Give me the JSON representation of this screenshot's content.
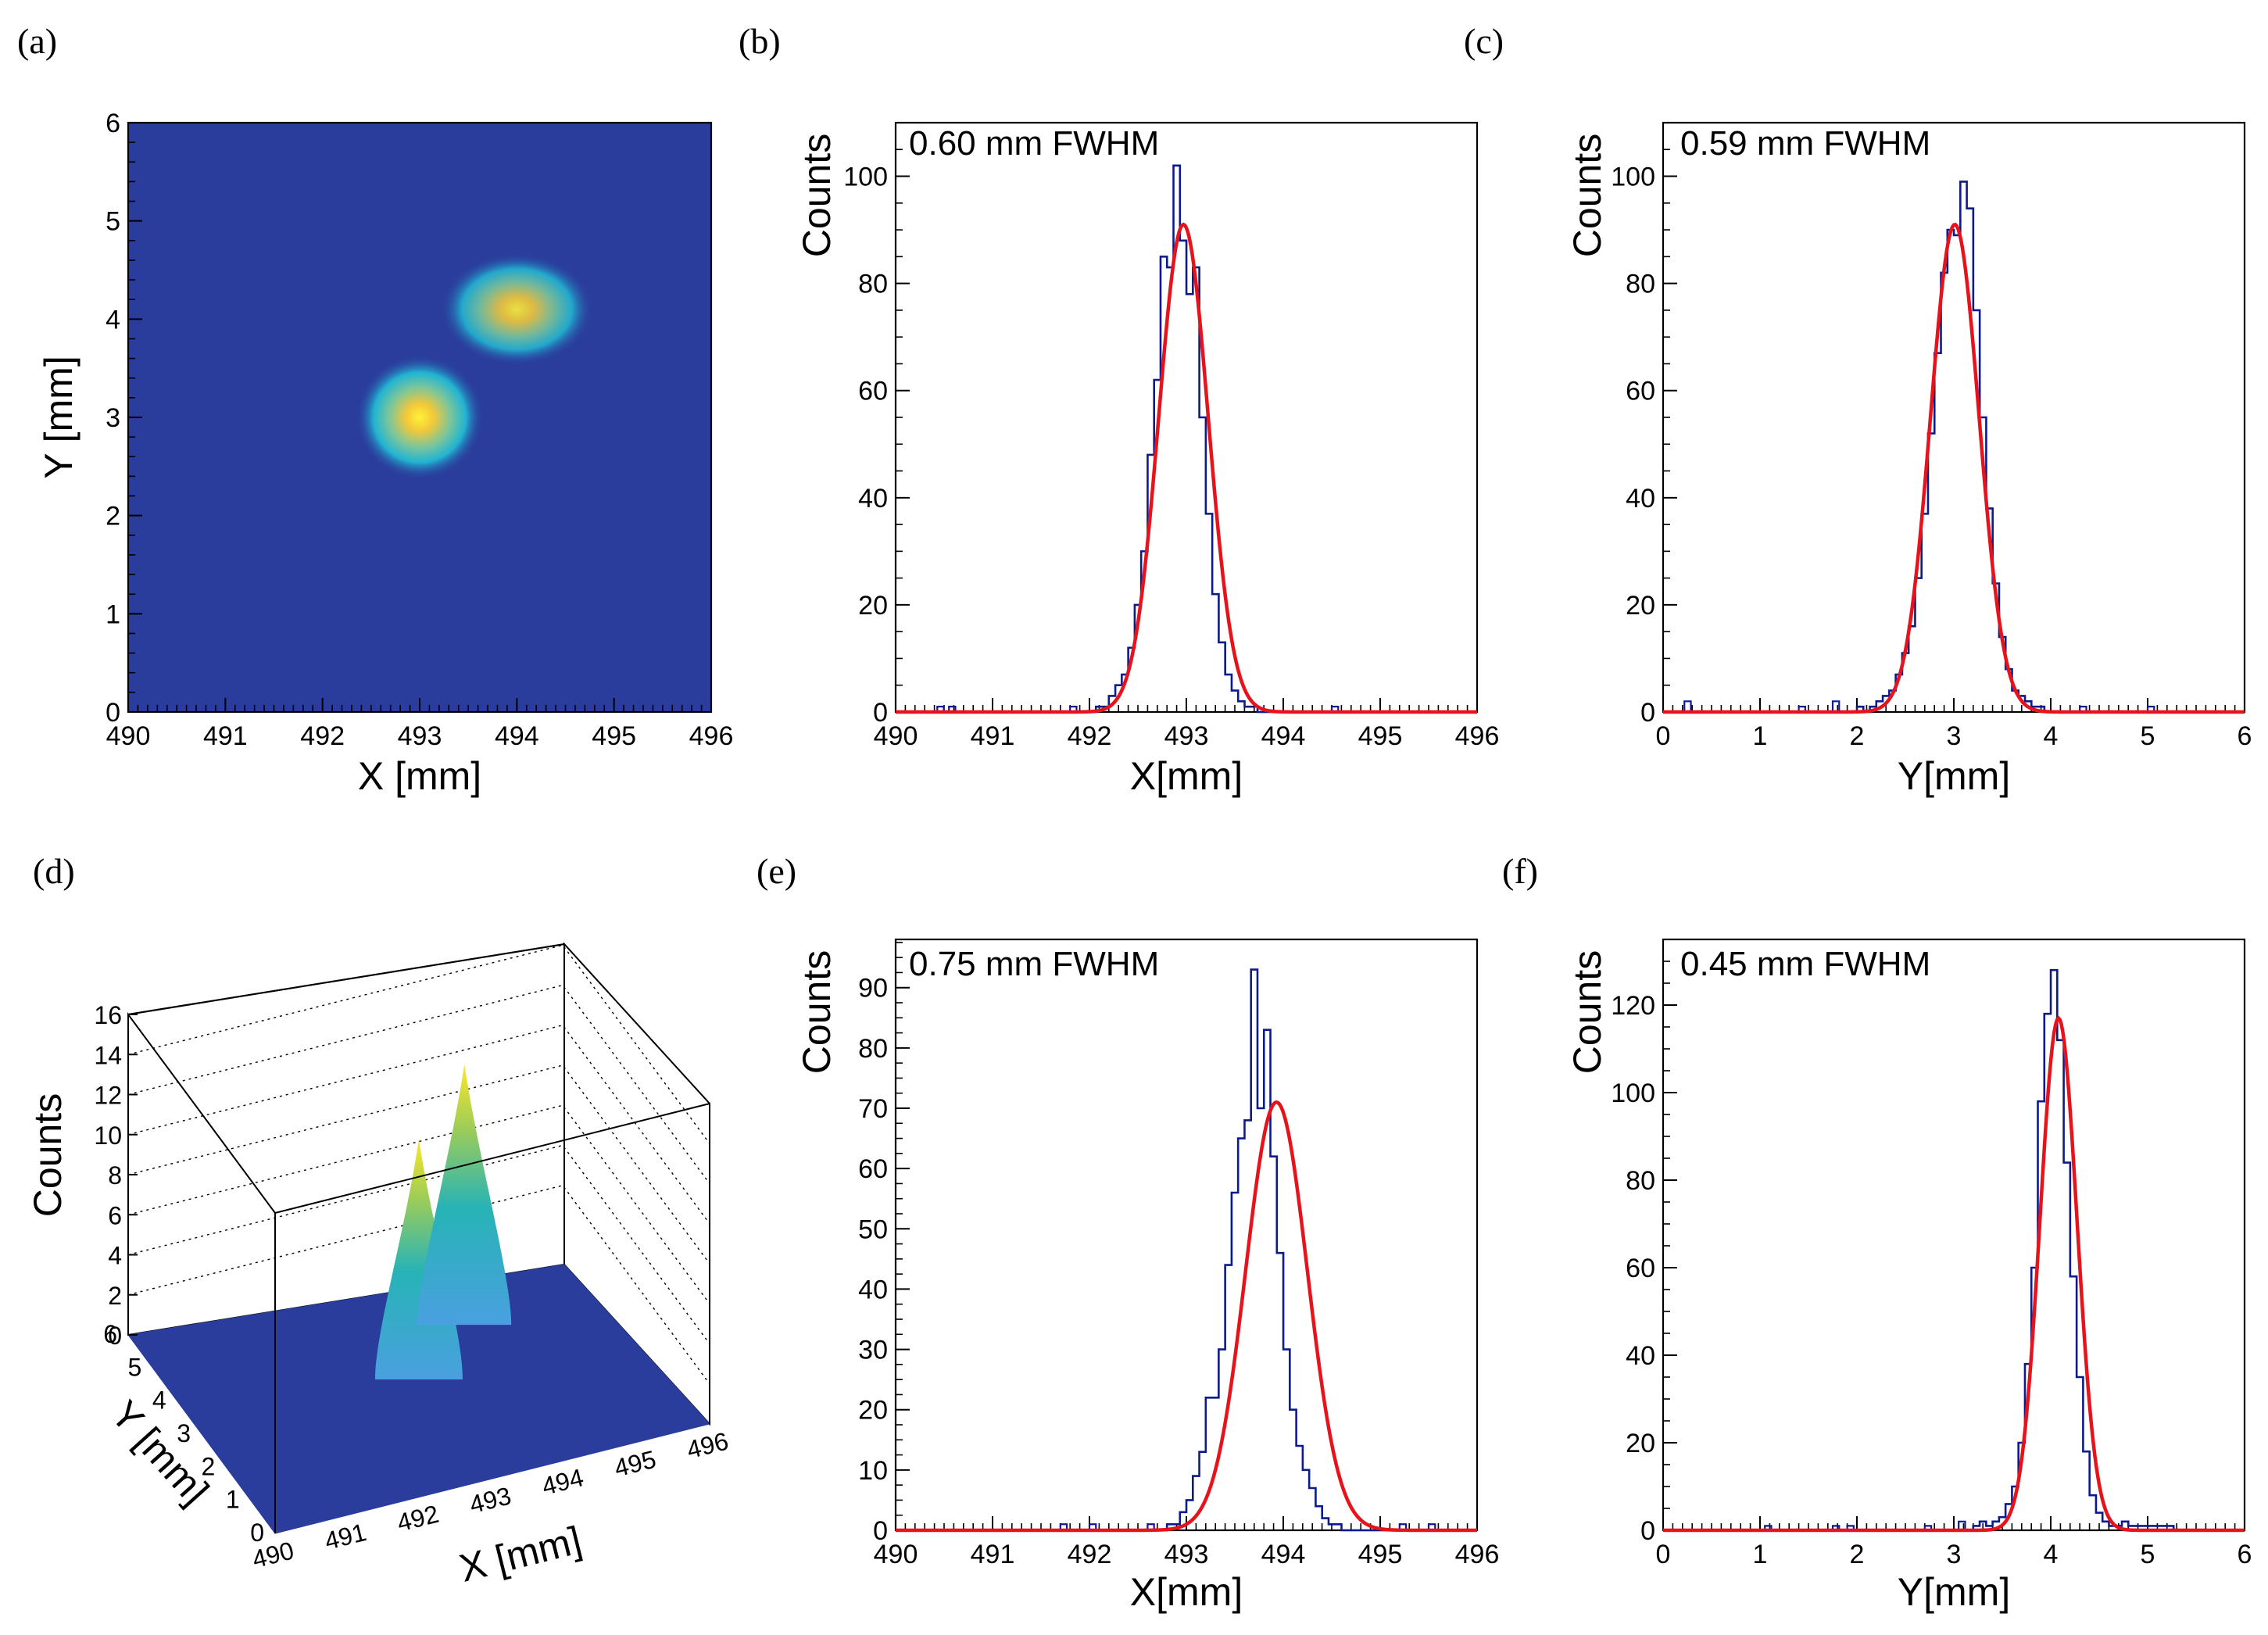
{
  "figure": {
    "panels": [
      {
        "letter": "(a)",
        "type": "heatmap",
        "xlabel": "X [mm]",
        "ylabel": "Y [mm]"
      },
      {
        "letter": "(b)",
        "type": "histogram",
        "annotation": "0.60 mm FWHM",
        "xlabel": "X[mm]",
        "ylabel": "Counts"
      },
      {
        "letter": "(c)",
        "type": "histogram",
        "annotation": "0.59 mm FWHM",
        "xlabel": "Y[mm]",
        "ylabel": "Counts"
      },
      {
        "letter": "(d)",
        "type": "surface3d",
        "xlabel": "X [mm]",
        "ylabel": "Y [mm]",
        "zlabel": "Counts"
      },
      {
        "letter": "(e)",
        "type": "histogram",
        "annotation": "0.75 mm FWHM",
        "xlabel": "X[mm]",
        "ylabel": "Counts"
      },
      {
        "letter": "(f)",
        "type": "histogram",
        "annotation": "0.45 mm FWHM",
        "xlabel": "Y[mm]",
        "ylabel": "Counts"
      }
    ]
  },
  "colors": {
    "background_map": "#2a3d9c",
    "histogram_line": "#0b1a8c",
    "fit_line": "#e8121b",
    "peak_core": "#fde725",
    "peak_mid": "#21b4b4"
  },
  "chart_data": [
    {
      "id": "a",
      "type": "heatmap",
      "title": "",
      "xlabel": "X [mm]",
      "ylabel": "Y [mm]",
      "xlim": [
        490,
        496
      ],
      "ylim": [
        0,
        6
      ],
      "xticks": [
        490,
        491,
        492,
        493,
        494,
        495,
        496
      ],
      "yticks": [
        0,
        1,
        2,
        3,
        4,
        5,
        6
      ],
      "spots": [
        {
          "x": 493.0,
          "y": 3.0,
          "peak": 1.0
        },
        {
          "x": 494.0,
          "y": 4.1,
          "peak": 0.9
        }
      ]
    },
    {
      "id": "b",
      "type": "histogram",
      "title": "",
      "annotation": "0.60 mm FWHM",
      "xlabel": "X[mm]",
      "ylabel": "Counts",
      "xlim": [
        490,
        496
      ],
      "ylim": [
        0,
        110
      ],
      "xticks": [
        490,
        491,
        492,
        493,
        494,
        495,
        496
      ],
      "yticks": [
        0,
        20,
        40,
        60,
        80,
        100
      ],
      "fit": {
        "mean": 492.97,
        "fwhm": 0.6,
        "amplitude": 91
      },
      "bins": {
        "start": 492.0,
        "width": 0.0667,
        "counts": [
          0,
          1,
          1,
          3,
          5,
          7,
          12,
          20,
          30,
          48,
          62,
          85,
          83,
          102,
          88,
          78,
          83,
          55,
          37,
          22,
          13,
          7,
          4,
          2,
          1,
          1,
          0,
          0
        ]
      },
      "noise": [
        [
          490.43,
          1
        ],
        [
          490.55,
          1
        ],
        [
          491.8,
          1
        ],
        [
          494.5,
          1
        ]
      ]
    },
    {
      "id": "c",
      "type": "histogram",
      "title": "",
      "annotation": "0.59 mm FWHM",
      "xlabel": "Y[mm]",
      "ylabel": "Counts",
      "xlim": [
        0,
        6
      ],
      "ylim": [
        0,
        110
      ],
      "xticks": [
        0,
        1,
        2,
        3,
        4,
        5,
        6
      ],
      "yticks": [
        0,
        20,
        40,
        60,
        80,
        100
      ],
      "fit": {
        "mean": 3.01,
        "fwhm": 0.59,
        "amplitude": 91
      },
      "bins": {
        "start": 2.0,
        "width": 0.0667,
        "counts": [
          1,
          0,
          1,
          2,
          3,
          4,
          7,
          11,
          16,
          25,
          37,
          52,
          67,
          82,
          90,
          89,
          99,
          94,
          75,
          55,
          38,
          24,
          14,
          8,
          4,
          3,
          2,
          1,
          1,
          0
        ]
      },
      "noise": [
        [
          0.22,
          2
        ],
        [
          1.4,
          1
        ],
        [
          1.75,
          2
        ],
        [
          4.3,
          1
        ],
        [
          5.0,
          1
        ]
      ]
    },
    {
      "id": "d",
      "type": "surface3d",
      "title": "",
      "xlabel": "X [mm]",
      "ylabel": "Y [mm]",
      "zlabel": "Counts",
      "xlim": [
        490,
        496
      ],
      "ylim": [
        0,
        6
      ],
      "zlim": [
        0,
        16
      ],
      "xticks": [
        490,
        491,
        492,
        493,
        494,
        495,
        496
      ],
      "yticks": [
        0,
        1,
        2,
        3,
        4,
        5,
        6
      ],
      "zticks": [
        0,
        2,
        4,
        6,
        8,
        10,
        12,
        14,
        16
      ],
      "peaks": [
        {
          "x": 493.0,
          "y": 3.0,
          "height": 12.0
        },
        {
          "x": 494.0,
          "y": 4.1,
          "height": 13.0
        }
      ]
    },
    {
      "id": "e",
      "type": "histogram",
      "title": "",
      "annotation": "0.75 mm FWHM",
      "xlabel": "X[mm]",
      "ylabel": "Counts",
      "xlim": [
        490,
        496
      ],
      "ylim": [
        0,
        98
      ],
      "xticks": [
        490,
        491,
        492,
        493,
        494,
        495,
        496
      ],
      "yticks": [
        0,
        10,
        20,
        30,
        40,
        50,
        60,
        70,
        80,
        90
      ],
      "fit": {
        "mean": 493.93,
        "fwhm": 0.75,
        "amplitude": 71
      },
      "bins": {
        "start": 492.8,
        "width": 0.0667,
        "counts": [
          1,
          1,
          3,
          5,
          9,
          13,
          22,
          22,
          30,
          44,
          56,
          65,
          68,
          93,
          70,
          83,
          62,
          46,
          30,
          20,
          14,
          10,
          7,
          4,
          2,
          1,
          1,
          0,
          0,
          0,
          0,
          0,
          0,
          0
        ]
      },
      "noise": [
        [
          491.7,
          1
        ],
        [
          492.0,
          1
        ],
        [
          492.6,
          1
        ],
        [
          495.2,
          1
        ],
        [
          495.5,
          1
        ]
      ]
    },
    {
      "id": "f",
      "type": "histogram",
      "title": "",
      "annotation": "0.45 mm FWHM",
      "xlabel": "Y[mm]",
      "ylabel": "Counts",
      "xlim": [
        0,
        6
      ],
      "ylim": [
        0,
        135
      ],
      "xticks": [
        0,
        1,
        2,
        3,
        4,
        5,
        6
      ],
      "yticks": [
        0,
        20,
        40,
        60,
        80,
        100,
        120
      ],
      "fit": {
        "mean": 4.08,
        "fwhm": 0.45,
        "amplitude": 117
      },
      "bins": {
        "start": 3.2,
        "width": 0.0667,
        "counts": [
          1,
          2,
          1,
          2,
          3,
          6,
          10,
          20,
          38,
          60,
          98,
          118,
          128,
          112,
          84,
          58,
          35,
          18,
          8,
          4,
          2,
          1,
          1,
          2,
          1,
          1,
          1,
          1,
          1,
          1,
          1,
          0
        ]
      },
      "noise": [
        [
          1.05,
          1
        ],
        [
          1.75,
          1
        ],
        [
          1.9,
          1
        ],
        [
          2.7,
          1
        ],
        [
          3.05,
          2
        ]
      ]
    }
  ]
}
